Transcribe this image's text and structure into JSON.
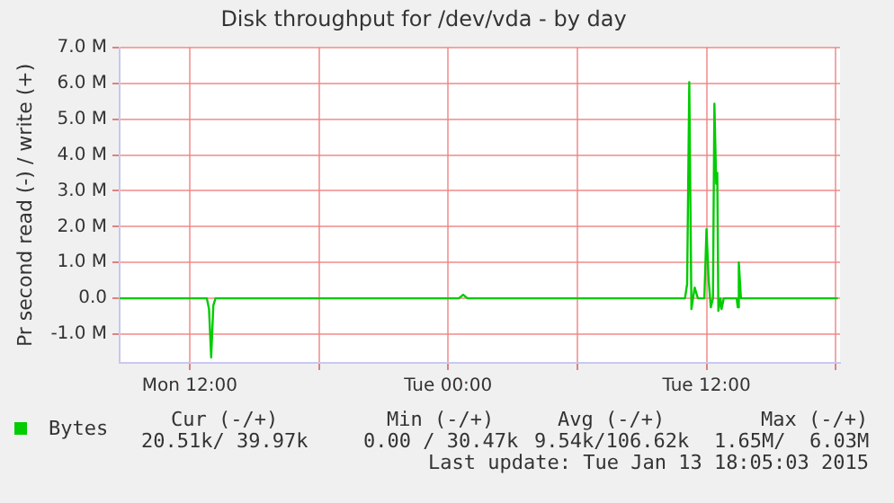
{
  "chart_data": {
    "type": "line",
    "title": "Disk throughput for /dev/vda - by day",
    "ylabel": "Pr second read (-) / write (+)",
    "xlim": [
      "2015-01-12T08:45",
      "2015-01-13T18:12"
    ],
    "xticks": [
      {
        "value": "2015-01-12T12:00",
        "label": "Mon 12:00"
      },
      {
        "value": "2015-01-12T18:00",
        "label": null
      },
      {
        "value": "2015-01-13T00:00",
        "label": "Tue 00:00"
      },
      {
        "value": "2015-01-13T06:00",
        "label": null
      },
      {
        "value": "2015-01-13T12:00",
        "label": "Tue 12:00"
      },
      {
        "value": "2015-01-13T18:00",
        "label": null
      }
    ],
    "ylim": [
      -1.8,
      7.0
    ],
    "yticks": [
      {
        "value": -1,
        "label": "-1.0 M"
      },
      {
        "value": 0,
        "label": "0.0"
      },
      {
        "value": 1,
        "label": "1.0 M"
      },
      {
        "value": 2,
        "label": "2.0 M"
      },
      {
        "value": 3,
        "label": "3.0 M"
      },
      {
        "value": 4,
        "label": "4.0 M"
      },
      {
        "value": 5,
        "label": "5.0 M"
      },
      {
        "value": 6,
        "label": "6.0 M"
      },
      {
        "value": 7,
        "label": "7.0 M"
      }
    ],
    "grid": true,
    "legend": "bottom",
    "marker": "none",
    "line_style": "solid",
    "series": [
      {
        "name": "Bytes",
        "color": "#00cc00",
        "x": [
          "2015-01-12T08:45",
          "2015-01-12T12:48",
          "2015-01-12T12:54",
          "2015-01-12T13:00",
          "2015-01-12T13:06",
          "2015-01-12T13:12",
          "2015-01-13T00:30",
          "2015-01-13T00:42",
          "2015-01-13T00:54",
          "2015-01-13T11:00",
          "2015-01-13T11:06",
          "2015-01-13T11:12",
          "2015-01-13T11:18",
          "2015-01-13T11:27",
          "2015-01-13T11:36",
          "2015-01-13T11:54",
          "2015-01-13T12:00",
          "2015-01-13T12:06",
          "2015-01-13T12:12",
          "2015-01-13T12:18",
          "2015-01-13T12:22",
          "2015-01-13T12:27",
          "2015-01-13T12:30",
          "2015-01-13T12:33",
          "2015-01-13T12:39",
          "2015-01-13T12:42",
          "2015-01-13T12:48",
          "2015-01-13T13:24",
          "2015-01-13T13:27",
          "2015-01-13T13:30",
          "2015-01-13T13:36",
          "2015-01-13T18:06"
        ],
        "values": [
          0,
          0,
          -0.3,
          -1.65,
          -0.2,
          0,
          0,
          0.1,
          0,
          0,
          0.4,
          6.03,
          -0.3,
          0.3,
          0,
          0,
          1.93,
          0.5,
          -0.25,
          0,
          5.43,
          3.2,
          3.5,
          -0.35,
          0,
          -0.3,
          0,
          0,
          -0.25,
          1.0,
          0,
          0
        ]
      }
    ],
    "annotations": [
      "Cur (-/+)",
      "Min (-/+)",
      "Avg (-/+)",
      "Max (-/+)",
      "20.51k/ 39.97k",
      "0.00 / 30.47k",
      "9.54k/106.62k",
      "1.65M/  6.03M",
      "Last update: Tue Jan 13 18:05:03 2015"
    ]
  }
}
